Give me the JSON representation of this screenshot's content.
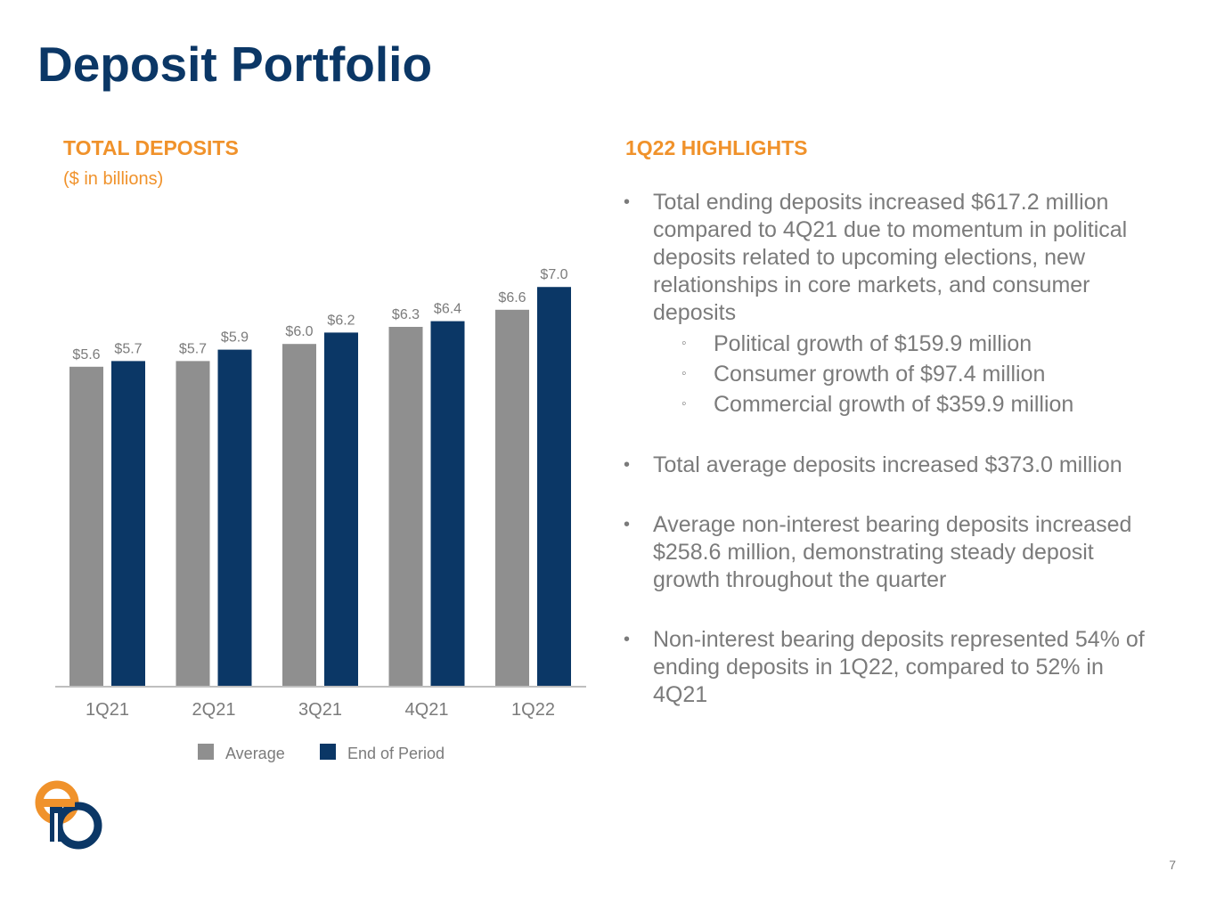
{
  "title": "Deposit Portfolio",
  "chart_section": {
    "title": "TOTAL DEPOSITS",
    "subtitle": "($ in billions)"
  },
  "highlights": {
    "title": "1Q22 HIGHLIGHTS",
    "bullets": [
      {
        "text": "Total ending deposits increased $617.2 million compared to 4Q21 due to momentum in political deposits related to upcoming elections, new relationships in core markets, and consumer deposits",
        "sub": [
          "Political growth of $159.9 million",
          "Consumer growth of $97.4 million",
          "Commercial growth of $359.9 million"
        ]
      },
      {
        "text": "Total average deposits increased $373.0 million"
      },
      {
        "text": "Average non-interest bearing deposits increased $258.6 million, demonstrating steady deposit growth throughout the quarter"
      },
      {
        "text": "Non-interest bearing deposits represented 54% of ending deposits in 1Q22, compared to 52% in 4Q21"
      }
    ]
  },
  "page_number": "7",
  "colors": {
    "navy": "#0b3766",
    "gray": "#8f8f8f",
    "orange": "#f0922b",
    "text_gray": "#7b7b7b"
  },
  "chart_data": {
    "type": "bar",
    "title": "TOTAL DEPOSITS",
    "subtitle": "($ in billions)",
    "categories": [
      "1Q21",
      "2Q21",
      "3Q21",
      "4Q21",
      "1Q22"
    ],
    "series": [
      {
        "name": "Average",
        "color": "#8f8f8f",
        "values": [
          5.6,
          5.7,
          6.0,
          6.3,
          6.6
        ],
        "labels": [
          "$5.6",
          "$5.7",
          "$6.0",
          "$6.3",
          "$6.6"
        ]
      },
      {
        "name": "End of Period",
        "color": "#0b3766",
        "values": [
          5.7,
          5.9,
          6.2,
          6.4,
          7.0
        ],
        "labels": [
          "$5.7",
          "$5.9",
          "$6.2",
          "$6.4",
          "$7.0"
        ]
      }
    ],
    "ylim": [
      0,
      7.5
    ],
    "grid": false,
    "legend_position": "bottom"
  }
}
